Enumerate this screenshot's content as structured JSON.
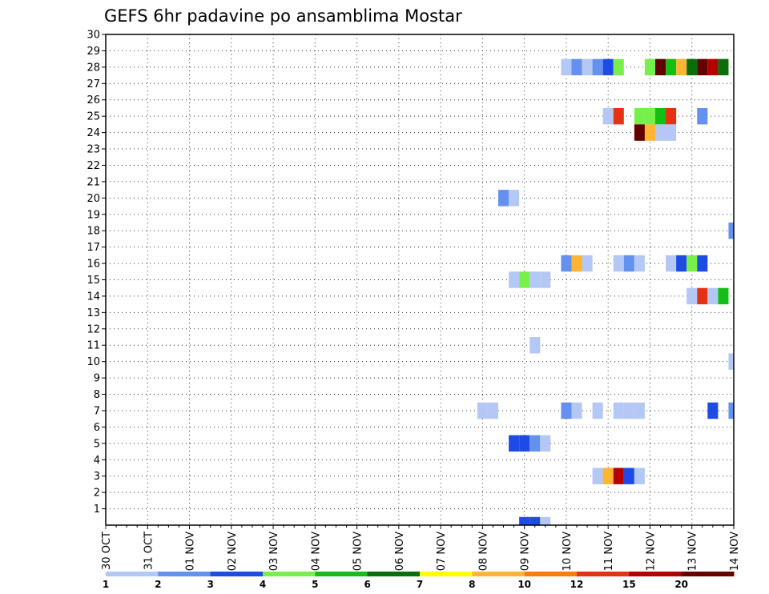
{
  "chart_data": {
    "type": "heatmap",
    "title": "GEFS 6hr padavine po ansamblima Mostar",
    "y_ticks": [
      "1",
      "2",
      "3",
      "4",
      "5",
      "6",
      "7",
      "8",
      "9",
      "10",
      "11",
      "12",
      "13",
      "14",
      "15",
      "16",
      "17",
      "18",
      "19",
      "20",
      "21",
      "22",
      "23",
      "24",
      "25",
      "26",
      "27",
      "28",
      "29",
      "30"
    ],
    "x_ticks": [
      "30 OCT",
      "31 OCT",
      "01 NOV",
      "02 NOV",
      "03 NOV",
      "04 NOV",
      "05 NOV",
      "06 NOV",
      "07 NOV",
      "08 NOV",
      "09 NOV",
      "10 NOV",
      "11 NOV",
      "12 NOV",
      "13 NOV",
      "14 NOV"
    ],
    "x_range": [
      "30 OCT 00Z",
      "14 NOV 00Z"
    ],
    "x_step_hours": 6,
    "y_range": [
      0,
      30
    ],
    "grid": true,
    "legend_levels": [
      "1",
      "2",
      "3",
      "4",
      "5",
      "6",
      "7",
      "8",
      "10",
      "12",
      "15",
      "20"
    ],
    "legend_colors": [
      "#b4c8f5",
      "#6491f0",
      "#1e4be6",
      "#78f04b",
      "#14be14",
      "#0a6e0a",
      "#ffff00",
      "#ffb432",
      "#ff7d00",
      "#e63214",
      "#b40000",
      "#640000"
    ],
    "cells": [
      {
        "m": 28,
        "t": "10 NOV 00Z",
        "v": 1
      },
      {
        "m": 28,
        "t": "10 NOV 06Z",
        "v": 2
      },
      {
        "m": 28,
        "t": "10 NOV 12Z",
        "v": 1
      },
      {
        "m": 28,
        "t": "10 NOV 18Z",
        "v": 2
      },
      {
        "m": 28,
        "t": "11 NOV 00Z",
        "v": 3
      },
      {
        "m": 28,
        "t": "11 NOV 06Z",
        "v": 4
      },
      {
        "m": 28,
        "t": "12 NOV 00Z",
        "v": 4
      },
      {
        "m": 28,
        "t": "12 NOV 06Z",
        "v": 20
      },
      {
        "m": 28,
        "t": "12 NOV 12Z",
        "v": 5
      },
      {
        "m": 28,
        "t": "12 NOV 18Z",
        "v": 8
      },
      {
        "m": 28,
        "t": "13 NOV 00Z",
        "v": 6
      },
      {
        "m": 28,
        "t": "13 NOV 06Z",
        "v": 20
      },
      {
        "m": 28,
        "t": "13 NOV 12Z",
        "v": 15
      },
      {
        "m": 28,
        "t": "13 NOV 18Z",
        "v": 6
      },
      {
        "m": 25,
        "t": "11 NOV 00Z",
        "v": 1
      },
      {
        "m": 25,
        "t": "11 NOV 06Z",
        "v": 12
      },
      {
        "m": 25,
        "t": "11 NOV 18Z",
        "v": 4
      },
      {
        "m": 25,
        "t": "12 NOV 00Z",
        "v": 4
      },
      {
        "m": 25,
        "t": "12 NOV 06Z",
        "v": 5
      },
      {
        "m": 25,
        "t": "12 NOV 12Z",
        "v": 12
      },
      {
        "m": 25,
        "t": "13 NOV 06Z",
        "v": 2
      },
      {
        "m": 24,
        "t": "11 NOV 18Z",
        "v": 20
      },
      {
        "m": 24,
        "t": "12 NOV 00Z",
        "v": 8
      },
      {
        "m": 24,
        "t": "12 NOV 06Z",
        "v": 1
      },
      {
        "m": 24,
        "t": "12 NOV 12Z",
        "v": 1
      },
      {
        "m": 20,
        "t": "08 NOV 12Z",
        "v": 2
      },
      {
        "m": 20,
        "t": "08 NOV 18Z",
        "v": 1
      },
      {
        "m": 18,
        "t": "14 NOV 00Z",
        "v": 2
      },
      {
        "m": 16,
        "t": "10 NOV 00Z",
        "v": 2
      },
      {
        "m": 16,
        "t": "10 NOV 06Z",
        "v": 8
      },
      {
        "m": 16,
        "t": "10 NOV 12Z",
        "v": 1
      },
      {
        "m": 16,
        "t": "11 NOV 06Z",
        "v": 1
      },
      {
        "m": 16,
        "t": "11 NOV 12Z",
        "v": 2
      },
      {
        "m": 16,
        "t": "11 NOV 18Z",
        "v": 1
      },
      {
        "m": 16,
        "t": "12 NOV 12Z",
        "v": 1
      },
      {
        "m": 16,
        "t": "12 NOV 18Z",
        "v": 3
      },
      {
        "m": 16,
        "t": "13 NOV 00Z",
        "v": 4
      },
      {
        "m": 16,
        "t": "13 NOV 06Z",
        "v": 3
      },
      {
        "m": 15,
        "t": "08 NOV 18Z",
        "v": 1
      },
      {
        "m": 15,
        "t": "09 NOV 00Z",
        "v": 4
      },
      {
        "m": 15,
        "t": "09 NOV 06Z",
        "v": 1
      },
      {
        "m": 15,
        "t": "09 NOV 12Z",
        "v": 1
      },
      {
        "m": 14,
        "t": "13 NOV 00Z",
        "v": 1
      },
      {
        "m": 14,
        "t": "13 NOV 06Z",
        "v": 12
      },
      {
        "m": 14,
        "t": "13 NOV 12Z",
        "v": 1
      },
      {
        "m": 14,
        "t": "13 NOV 18Z",
        "v": 5
      },
      {
        "m": 11,
        "t": "09 NOV 06Z",
        "v": 1
      },
      {
        "m": 10,
        "t": "14 NOV 00Z",
        "v": 1
      },
      {
        "m": 7,
        "t": "08 NOV 00Z",
        "v": 1
      },
      {
        "m": 7,
        "t": "08 NOV 06Z",
        "v": 1
      },
      {
        "m": 7,
        "t": "10 NOV 00Z",
        "v": 2
      },
      {
        "m": 7,
        "t": "10 NOV 06Z",
        "v": 1
      },
      {
        "m": 7,
        "t": "10 NOV 18Z",
        "v": 1
      },
      {
        "m": 7,
        "t": "11 NOV 06Z",
        "v": 1
      },
      {
        "m": 7,
        "t": "11 NOV 12Z",
        "v": 1
      },
      {
        "m": 7,
        "t": "11 NOV 18Z",
        "v": 1
      },
      {
        "m": 7,
        "t": "13 NOV 12Z",
        "v": 3
      },
      {
        "m": 7,
        "t": "14 NOV 00Z",
        "v": 2
      },
      {
        "m": 5,
        "t": "08 NOV 18Z",
        "v": 3
      },
      {
        "m": 5,
        "t": "09 NOV 00Z",
        "v": 3
      },
      {
        "m": 5,
        "t": "09 NOV 06Z",
        "v": 2
      },
      {
        "m": 5,
        "t": "09 NOV 12Z",
        "v": 1
      },
      {
        "m": 3,
        "t": "10 NOV 18Z",
        "v": 1
      },
      {
        "m": 3,
        "t": "11 NOV 00Z",
        "v": 8
      },
      {
        "m": 3,
        "t": "11 NOV 06Z",
        "v": 15
      },
      {
        "m": 3,
        "t": "11 NOV 12Z",
        "v": 3
      },
      {
        "m": 3,
        "t": "11 NOV 18Z",
        "v": 1
      },
      {
        "m": 0,
        "t": "09 NOV 00Z",
        "v": 3
      },
      {
        "m": 0,
        "t": "09 NOV 06Z",
        "v": 3
      },
      {
        "m": 0,
        "t": "09 NOV 12Z",
        "v": 1
      }
    ]
  }
}
